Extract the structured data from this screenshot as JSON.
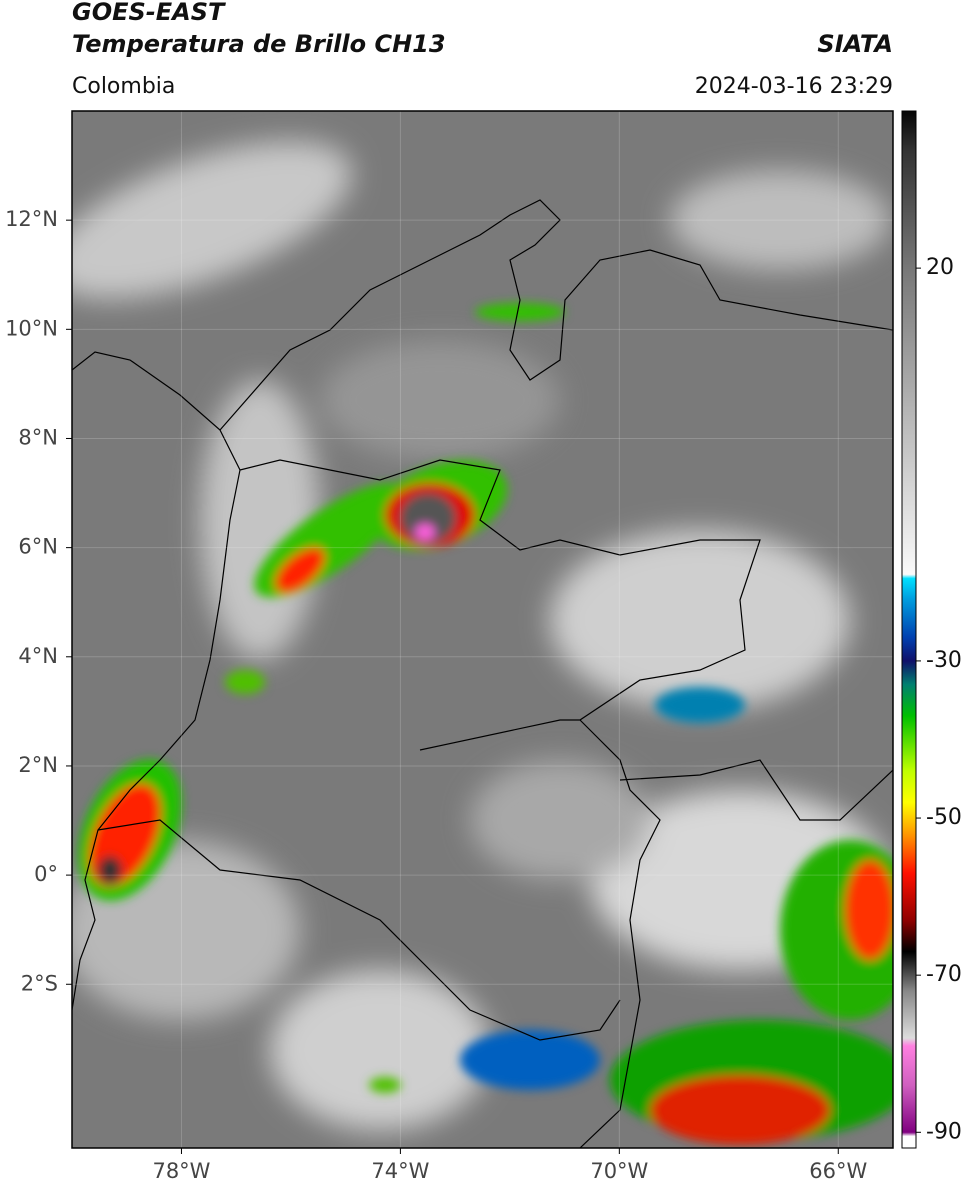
{
  "header": {
    "title": "GOES-EAST",
    "subtitle": "Temperatura de Brillo CH13",
    "source": "SIATA",
    "region": "Colombia",
    "timestamp": "2024-03-16 23:29"
  },
  "map": {
    "xlim": [
      -80,
      -65
    ],
    "ylim": [
      -5,
      14
    ],
    "xticks": [
      {
        "value": -78,
        "label": "78°W"
      },
      {
        "value": -74,
        "label": "74°W"
      },
      {
        "value": -70,
        "label": "70°W"
      },
      {
        "value": -66,
        "label": "66°W"
      }
    ],
    "yticks": [
      {
        "value": 12,
        "label": "12°N"
      },
      {
        "value": 10,
        "label": "10°N"
      },
      {
        "value": 8,
        "label": "8°N"
      },
      {
        "value": 6,
        "label": "6°N"
      },
      {
        "value": 4,
        "label": "4°N"
      },
      {
        "value": 2,
        "label": "2°N"
      },
      {
        "value": 0,
        "label": "0°"
      },
      {
        "value": -2,
        "label": "2°S"
      }
    ],
    "grid": true
  },
  "colorbar": {
    "lim": [
      -92,
      40
    ],
    "ticks": [
      20,
      -30,
      -50,
      -70,
      -90
    ],
    "stops": [
      {
        "value": 40,
        "color": "#050505"
      },
      {
        "value": 35,
        "color": "#333333"
      },
      {
        "value": 20,
        "color": "#777777"
      },
      {
        "value": 0,
        "color": "#bbbbbb"
      },
      {
        "value": -19,
        "color": "#fafafa"
      },
      {
        "value": -19.5,
        "color": "#00e0ff"
      },
      {
        "value": -22,
        "color": "#00a0e0"
      },
      {
        "value": -27,
        "color": "#0040b0"
      },
      {
        "value": -30,
        "color": "#10106a"
      },
      {
        "value": -33,
        "color": "#008070"
      },
      {
        "value": -37,
        "color": "#00c000"
      },
      {
        "value": -44,
        "color": "#c0ff00"
      },
      {
        "value": -48,
        "color": "#ffff00"
      },
      {
        "value": -52,
        "color": "#ff9900"
      },
      {
        "value": -57,
        "color": "#ff1000"
      },
      {
        "value": -63,
        "color": "#900000"
      },
      {
        "value": -67,
        "color": "#000000"
      },
      {
        "value": -72,
        "color": "#888888"
      },
      {
        "value": -78,
        "color": "#dddddd"
      },
      {
        "value": -79,
        "color": "#ff80e0"
      },
      {
        "value": -84,
        "color": "#d060c0"
      },
      {
        "value": -90,
        "color": "#800080"
      },
      {
        "value": -90.5,
        "color": "#ffffff"
      },
      {
        "value": -92,
        "color": "#ffffff"
      }
    ]
  }
}
